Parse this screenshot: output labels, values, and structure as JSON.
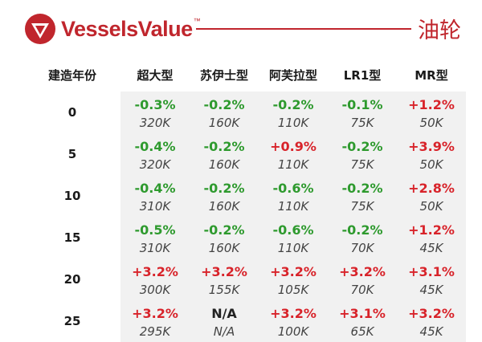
{
  "header": {
    "logo_text": "VesselsValue",
    "logo_tm": "™",
    "title": "油轮"
  },
  "table": {
    "age_header": "建造年份",
    "columns": [
      "超大型",
      "苏伊士型",
      "阿芙拉型",
      "LR1型",
      "MR型"
    ],
    "rows": [
      {
        "age": "0",
        "pct": [
          "-0.3%",
          "-0.2%",
          "-0.2%",
          "-0.1%",
          "+1.2%"
        ],
        "vals": [
          "320K",
          "160K",
          "110K",
          "75K",
          "50K"
        ]
      },
      {
        "age": "5",
        "pct": [
          "-0.4%",
          "-0.2%",
          "+0.9%",
          "-0.2%",
          "+3.9%"
        ],
        "vals": [
          "320K",
          "160K",
          "110K",
          "75K",
          "50K"
        ]
      },
      {
        "age": "10",
        "pct": [
          "-0.4%",
          "-0.2%",
          "-0.6%",
          "-0.2%",
          "+2.8%"
        ],
        "vals": [
          "310K",
          "160K",
          "110K",
          "75K",
          "50K"
        ]
      },
      {
        "age": "15",
        "pct": [
          "-0.5%",
          "-0.2%",
          "-0.6%",
          "-0.2%",
          "+1.2%"
        ],
        "vals": [
          "310K",
          "160K",
          "110K",
          "70K",
          "45K"
        ]
      },
      {
        "age": "20",
        "pct": [
          "+3.2%",
          "+3.2%",
          "+3.2%",
          "+3.2%",
          "+3.1%"
        ],
        "vals": [
          "300K",
          "155K",
          "105K",
          "70K",
          "45K"
        ]
      },
      {
        "age": "25",
        "pct": [
          "+3.2%",
          "N/A",
          "+3.2%",
          "+3.1%",
          "+3.2%"
        ],
        "vals": [
          "295K",
          "N/A",
          "100K",
          "65K",
          "45K"
        ]
      }
    ]
  },
  "colors": {
    "brand": "#c0262d",
    "positive": "#d8232a",
    "negative": "#2e9a2e",
    "cell_bg": "#f1f1f1"
  },
  "icons": {
    "logo": "vesselsvalue-triangle-logo-icon"
  }
}
